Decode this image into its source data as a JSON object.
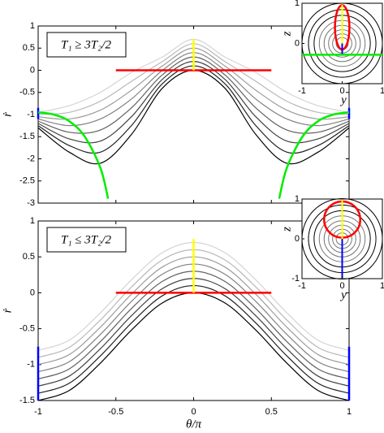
{
  "chart_data": [
    {
      "type": "line",
      "annotation": "T₁ ≥ 3T₂/2",
      "ylabel": "ṙ",
      "xlim": [
        -1,
        1
      ],
      "xticks": [
        -1,
        -0.5,
        0,
        0.5,
        1
      ],
      "ylim": [
        -3,
        1
      ],
      "yticks": [
        -3,
        -2.5,
        -2,
        -1.5,
        -1,
        -0.5,
        0,
        0.5,
        1
      ],
      "series": [
        {
          "color": "#000000",
          "x": [
            -1,
            -0.8,
            -0.6,
            -0.4,
            -0.2,
            0,
            0.2,
            0.4,
            0.6,
            0.8,
            1
          ],
          "values": [
            -1.3,
            -1.85,
            -2.1,
            -1.45,
            -0.4,
            0,
            -0.4,
            -1.45,
            -2.1,
            -1.85,
            -1.3
          ]
        },
        {
          "color": "#202020",
          "x": [
            -1,
            -0.8,
            -0.6,
            -0.4,
            -0.2,
            0,
            0.2,
            0.4,
            0.6,
            0.8,
            1
          ],
          "values": [
            -1.25,
            -1.7,
            -1.85,
            -1.25,
            -0.3,
            0.1,
            -0.3,
            -1.25,
            -1.85,
            -1.7,
            -1.25
          ]
        },
        {
          "color": "#404040",
          "x": [
            -1,
            -0.8,
            -0.6,
            -0.4,
            -0.2,
            0,
            0.2,
            0.4,
            0.6,
            0.8,
            1
          ],
          "values": [
            -1.2,
            -1.55,
            -1.6,
            -1.05,
            -0.2,
            0.2,
            -0.2,
            -1.05,
            -1.6,
            -1.55,
            -1.2
          ]
        },
        {
          "color": "#606060",
          "x": [
            -1,
            -0.8,
            -0.6,
            -0.4,
            -0.2,
            0,
            0.2,
            0.4,
            0.6,
            0.8,
            1
          ],
          "values": [
            -1.15,
            -1.4,
            -1.35,
            -0.85,
            -0.1,
            0.3,
            -0.1,
            -0.85,
            -1.35,
            -1.4,
            -1.15
          ]
        },
        {
          "color": "#808080",
          "x": [
            -1,
            -0.8,
            -0.6,
            -0.4,
            -0.2,
            0,
            0.2,
            0.4,
            0.6,
            0.8,
            1
          ],
          "values": [
            -1.1,
            -1.25,
            -1.1,
            -0.65,
            0,
            0.4,
            0,
            -0.65,
            -1.1,
            -1.25,
            -1.1
          ]
        },
        {
          "color": "#9c9c9c",
          "x": [
            -1,
            -0.8,
            -0.6,
            -0.4,
            -0.2,
            0,
            0.2,
            0.4,
            0.6,
            0.8,
            1
          ],
          "values": [
            -1.05,
            -1.1,
            -0.9,
            -0.45,
            0.1,
            0.5,
            0.1,
            -0.45,
            -0.9,
            -1.1,
            -1.05
          ]
        },
        {
          "color": "#b8b8b8",
          "x": [
            -1,
            -0.8,
            -0.6,
            -0.4,
            -0.2,
            0,
            0.2,
            0.4,
            0.6,
            0.8,
            1
          ],
          "values": [
            -1,
            -0.95,
            -0.7,
            -0.25,
            0.2,
            0.6,
            0.2,
            -0.25,
            -0.7,
            -0.95,
            -1
          ]
        },
        {
          "color": "#d4d4d4",
          "x": [
            -1,
            -0.8,
            -0.6,
            -0.4,
            -0.2,
            0,
            0.2,
            0.4,
            0.6,
            0.8,
            1
          ],
          "values": [
            -0.95,
            -0.8,
            -0.5,
            -0.05,
            0.3,
            0.7,
            0.3,
            -0.05,
            -0.5,
            -0.8,
            -0.95
          ]
        },
        {
          "color": "#ff0000",
          "x": [
            -0.5,
            0.5
          ],
          "values": [
            0,
            0
          ]
        },
        {
          "color": "#ffff00",
          "x": [
            0,
            0
          ],
          "values": [
            0,
            0.7
          ]
        },
        {
          "color": "#0000ff",
          "x": [
            -1,
            -1
          ],
          "values": [
            -1.1,
            -0.85
          ]
        },
        {
          "color": "#0000ff",
          "x": [
            1,
            1
          ],
          "values": [
            -1.1,
            -0.85
          ]
        },
        {
          "color": "#00ee00",
          "x": [
            -1,
            -0.9,
            -0.8,
            -0.7,
            -0.6,
            -0.55
          ],
          "values": [
            -0.95,
            -1,
            -1.15,
            -1.5,
            -2.2,
            -2.9
          ]
        },
        {
          "color": "#00ee00",
          "x": [
            1,
            0.9,
            0.8,
            0.7,
            0.6,
            0.55
          ],
          "values": [
            -0.95,
            -1,
            -1.15,
            -1.5,
            -2.2,
            -2.9
          ]
        }
      ],
      "inset": {
        "xlabel": "y",
        "ylabel": "z",
        "xlim": [
          -1,
          1
        ],
        "ylim": [
          -1,
          1
        ],
        "xticks": [
          -1,
          0,
          1
        ],
        "yticks": [
          0,
          1
        ]
      }
    },
    {
      "type": "line",
      "annotation": "T₁ ≤ 3T₂/2",
      "ylabel": "ṙ",
      "xlabel": "θ/π",
      "xlim": [
        -1,
        1
      ],
      "xticks": [
        -1,
        -0.5,
        0,
        0.5,
        1
      ],
      "ylim": [
        -1.5,
        1
      ],
      "yticks": [
        -1.5,
        -1,
        -0.5,
        0,
        0.5,
        1
      ],
      "series": [
        {
          "color": "#000000",
          "x": [
            -1,
            -0.8,
            -0.6,
            -0.4,
            -0.2,
            0,
            0.2,
            0.4,
            0.6,
            0.8,
            1
          ],
          "values": [
            -1.5,
            -1.36,
            -0.98,
            -0.52,
            -0.14,
            0,
            -0.14,
            -0.52,
            -0.98,
            -1.36,
            -1.5
          ]
        },
        {
          "color": "#202020",
          "x": [
            -1,
            -0.8,
            -0.6,
            -0.4,
            -0.2,
            0,
            0.2,
            0.4,
            0.6,
            0.8,
            1
          ],
          "values": [
            -1.4,
            -1.26,
            -0.88,
            -0.42,
            -0.04,
            0.1,
            -0.04,
            -0.42,
            -0.88,
            -1.26,
            -1.4
          ]
        },
        {
          "color": "#404040",
          "x": [
            -1,
            -0.8,
            -0.6,
            -0.4,
            -0.2,
            0,
            0.2,
            0.4,
            0.6,
            0.8,
            1
          ],
          "values": [
            -1.3,
            -1.16,
            -0.78,
            -0.32,
            0.06,
            0.2,
            0.06,
            -0.32,
            -0.78,
            -1.16,
            -1.3
          ]
        },
        {
          "color": "#606060",
          "x": [
            -1,
            -0.8,
            -0.6,
            -0.4,
            -0.2,
            0,
            0.2,
            0.4,
            0.6,
            0.8,
            1
          ],
          "values": [
            -1.2,
            -1.06,
            -0.68,
            -0.22,
            0.16,
            0.3,
            0.16,
            -0.22,
            -0.68,
            -1.06,
            -1.2
          ]
        },
        {
          "color": "#808080",
          "x": [
            -1,
            -0.8,
            -0.6,
            -0.4,
            -0.2,
            0,
            0.2,
            0.4,
            0.6,
            0.8,
            1
          ],
          "values": [
            -1.1,
            -0.96,
            -0.58,
            -0.12,
            0.26,
            0.4,
            0.26,
            -0.12,
            -0.58,
            -0.96,
            -1.1
          ]
        },
        {
          "color": "#9c9c9c",
          "x": [
            -1,
            -0.8,
            -0.6,
            -0.4,
            -0.2,
            0,
            0.2,
            0.4,
            0.6,
            0.8,
            1
          ],
          "values": [
            -1,
            -0.86,
            -0.48,
            -0.02,
            0.36,
            0.5,
            0.36,
            -0.02,
            -0.48,
            -0.86,
            -1
          ]
        },
        {
          "color": "#b8b8b8",
          "x": [
            -1,
            -0.8,
            -0.6,
            -0.4,
            -0.2,
            0,
            0.2,
            0.4,
            0.6,
            0.8,
            1
          ],
          "values": [
            -0.9,
            -0.76,
            -0.38,
            0.08,
            0.46,
            0.6,
            0.46,
            0.08,
            -0.38,
            -0.76,
            -0.9
          ]
        },
        {
          "color": "#d4d4d4",
          "x": [
            -1,
            -0.8,
            -0.6,
            -0.4,
            -0.2,
            0,
            0.2,
            0.4,
            0.6,
            0.8,
            1
          ],
          "values": [
            -0.8,
            -0.66,
            -0.28,
            0.18,
            0.56,
            0.7,
            0.56,
            0.18,
            -0.28,
            -0.66,
            -0.8
          ]
        },
        {
          "color": "#ff0000",
          "x": [
            -0.5,
            0.5
          ],
          "values": [
            0,
            0
          ]
        },
        {
          "color": "#ffff00",
          "x": [
            0,
            0
          ],
          "values": [
            0,
            0.75
          ]
        },
        {
          "color": "#0000ff",
          "x": [
            -1,
            -1
          ],
          "values": [
            -1.5,
            -0.75
          ]
        },
        {
          "color": "#0000ff",
          "x": [
            1,
            1
          ],
          "values": [
            -1.5,
            -0.75
          ]
        }
      ],
      "inset": {
        "xlabel": "y",
        "ylabel": "z",
        "xlim": [
          -1,
          1
        ],
        "ylim": [
          -1,
          1
        ],
        "xticks": [
          -1,
          0,
          1
        ],
        "yticks": [
          -1,
          0,
          1
        ]
      }
    }
  ]
}
